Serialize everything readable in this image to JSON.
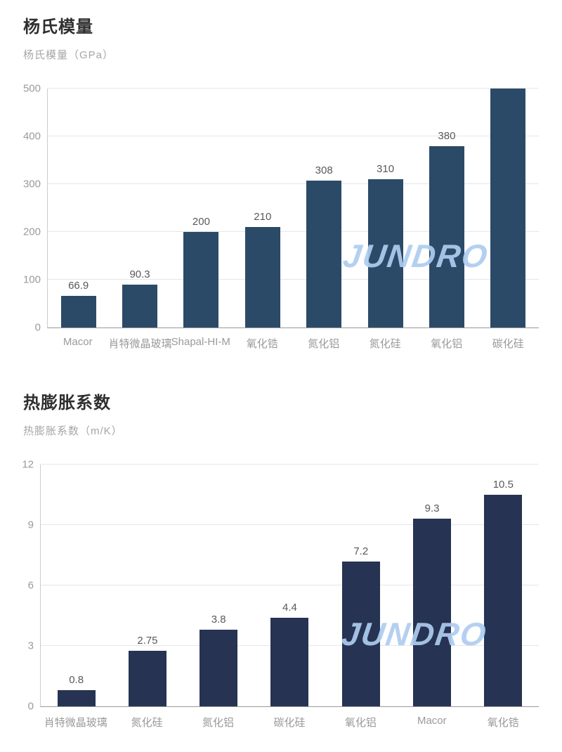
{
  "watermark": {
    "text": "JUNDRO",
    "color": "#aecdf0"
  },
  "chart_data": [
    {
      "type": "bar",
      "title": "杨氏模量",
      "subtitle": "杨氏模量（GPa）",
      "categories": [
        "Macor",
        "肖特微晶玻璃",
        "Shapal-HI-M",
        "氧化锆",
        "氮化铝",
        "氮化硅",
        "氧化铝",
        "碳化硅"
      ],
      "values": [
        66.9,
        90.3,
        200,
        210,
        308,
        310,
        380,
        500
      ],
      "bar_labels": [
        "66.9",
        "90.3",
        "200",
        "210",
        "308",
        "310",
        "380",
        ""
      ],
      "ylim": [
        0,
        500
      ],
      "yticks": [
        0,
        100,
        200,
        300,
        400,
        500
      ],
      "bar_color": "#2b4a68",
      "grid": true,
      "legend": "none",
      "xlabel": "",
      "ylabel": "杨氏模量（GPa）"
    },
    {
      "type": "bar",
      "title": "热膨胀系数",
      "subtitle": "热膨胀系数（m/K）",
      "categories": [
        "肖特微晶玻璃",
        "氮化硅",
        "氮化铝",
        "碳化硅",
        "氧化铝",
        "Macor",
        "氧化锆"
      ],
      "values": [
        0.8,
        2.75,
        3.8,
        4.4,
        7.2,
        9.3,
        10.5
      ],
      "bar_labels": [
        "0.8",
        "2.75",
        "3.8",
        "4.4",
        "7.2",
        "9.3",
        "10.5"
      ],
      "ylim": [
        0,
        12
      ],
      "yticks": [
        0,
        3,
        6,
        9,
        12
      ],
      "bar_color": "#263353",
      "grid": true,
      "legend": "none",
      "xlabel": "",
      "ylabel": "热膨胀系数（m/K）"
    }
  ]
}
